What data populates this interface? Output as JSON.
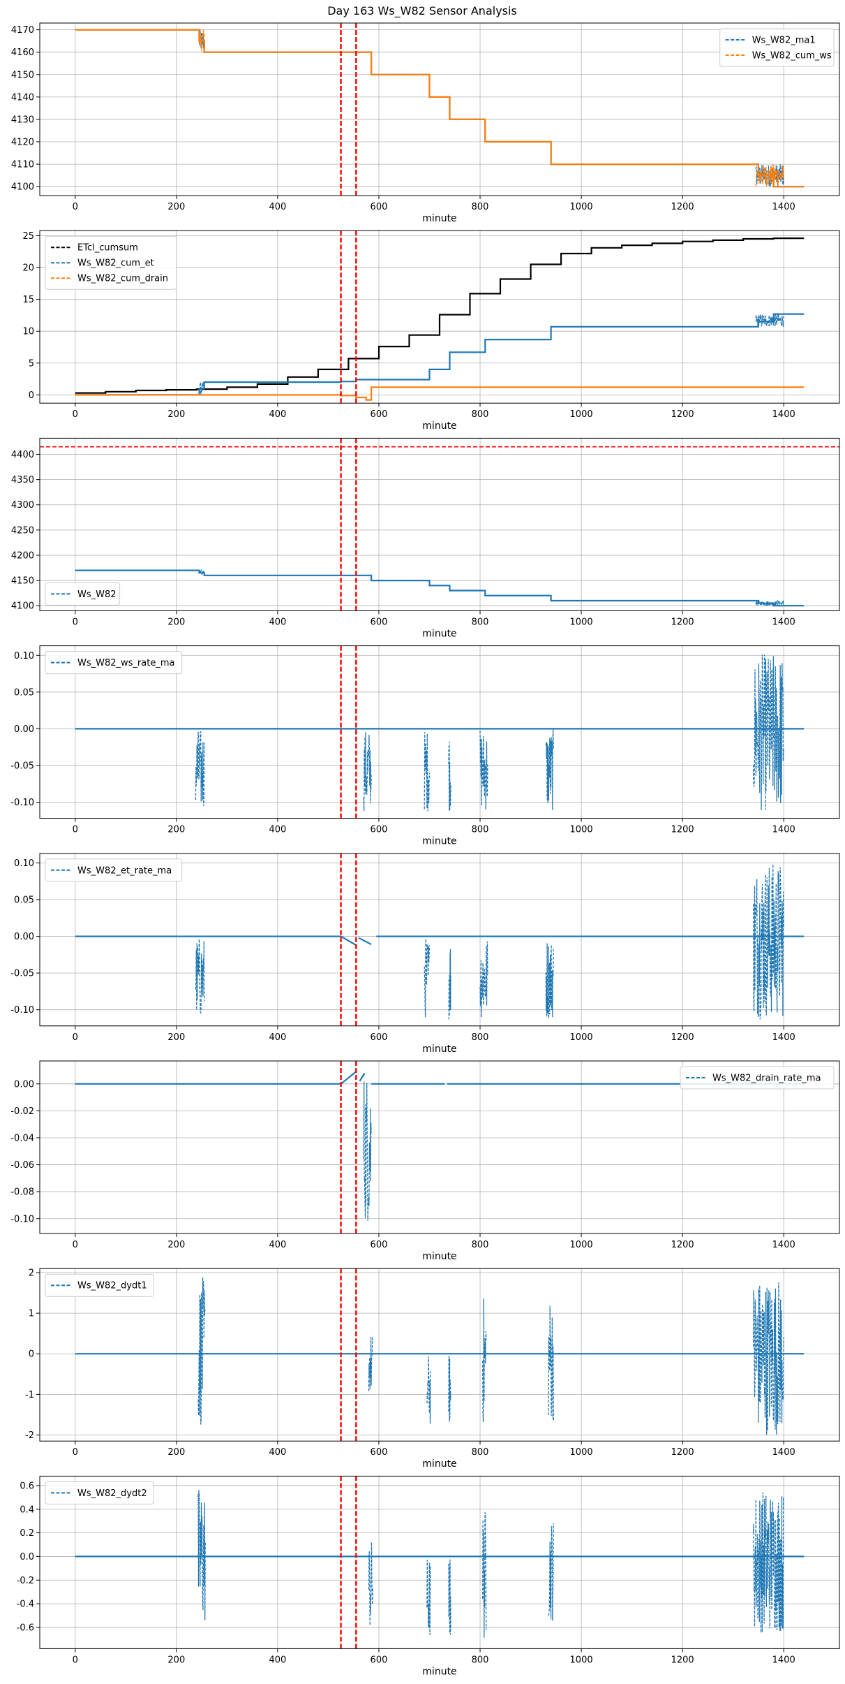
{
  "figure": {
    "title": "Day 163 Ws_W82 Sensor Analysis",
    "xlabel": "minute",
    "xticks": [
      0,
      200,
      400,
      600,
      800,
      1000,
      1200,
      1400
    ],
    "grid": true,
    "event_lines": {
      "color": "#ff0000",
      "x": [
        525,
        555
      ]
    }
  },
  "chart_data": [
    {
      "type": "line",
      "xlim": [
        -70,
        1510
      ],
      "ylim": [
        4096,
        4173
      ],
      "yticks": [
        4100,
        4110,
        4120,
        4130,
        4140,
        4150,
        4160,
        4170
      ],
      "ytick_labels": [
        "4100",
        "4110",
        "4120",
        "4130",
        "4140",
        "4150",
        "4160",
        "4170"
      ],
      "legend_loc": "upper-right",
      "series": [
        {
          "name": "Ws_W82_ma1",
          "color": "#1f77b4",
          "steps": [
            [
              0,
              4170
            ],
            [
              245,
              4165
            ],
            [
              255,
              4160
            ],
            [
              585,
              4150
            ],
            [
              700,
              4140
            ],
            [
              740,
              4130
            ],
            [
              810,
              4120
            ],
            [
              940,
              4110
            ],
            [
              1350,
              4105
            ],
            [
              1380,
              4100
            ]
          ],
          "noise": [
            [
              245,
              255,
              4160,
              4170
            ],
            [
              1345,
              1400,
              4100,
              4110
            ]
          ]
        },
        {
          "name": "Ws_W82_cum_ws",
          "color": "#ff7f0e",
          "steps": [
            [
              0,
              4170
            ],
            [
              245,
              4165
            ],
            [
              255,
              4160
            ],
            [
              585,
              4150
            ],
            [
              700,
              4140
            ],
            [
              740,
              4130
            ],
            [
              810,
              4120
            ],
            [
              940,
              4110
            ],
            [
              1350,
              4105
            ],
            [
              1380,
              4100
            ]
          ],
          "noise": [
            [
              245,
              255,
              4160,
              4170
            ],
            [
              1345,
              1400,
              4100,
              4110
            ]
          ]
        }
      ]
    },
    {
      "type": "line",
      "xlim": [
        -70,
        1510
      ],
      "ylim": [
        -1.3,
        25.8
      ],
      "yticks": [
        0,
        5,
        10,
        15,
        20,
        25
      ],
      "ytick_labels": [
        "0",
        "5",
        "10",
        "15",
        "20",
        "25"
      ],
      "legend_loc": "upper-left",
      "series": [
        {
          "name": "ETcl_cumsum",
          "color": "#000000",
          "steps": [
            [
              0,
              0.3
            ],
            [
              60,
              0.5
            ],
            [
              120,
              0.7
            ],
            [
              180,
              0.8
            ],
            [
              240,
              0.9
            ],
            [
              300,
              1.2
            ],
            [
              360,
              1.7
            ],
            [
              420,
              2.8
            ],
            [
              480,
              4.0
            ],
            [
              540,
              5.7
            ],
            [
              600,
              7.6
            ],
            [
              660,
              9.4
            ],
            [
              720,
              12.6
            ],
            [
              780,
              15.9
            ],
            [
              840,
              18.2
            ],
            [
              900,
              20.5
            ],
            [
              960,
              22.2
            ],
            [
              1020,
              23.1
            ],
            [
              1080,
              23.5
            ],
            [
              1140,
              23.8
            ],
            [
              1200,
              24.1
            ],
            [
              1260,
              24.3
            ],
            [
              1320,
              24.5
            ],
            [
              1380,
              24.6
            ]
          ],
          "noise": []
        },
        {
          "name": "Ws_W82_cum_et",
          "color": "#1f77b4",
          "steps": [
            [
              0,
              0
            ],
            [
              245,
              1.0
            ],
            [
              255,
              2.0
            ],
            [
              525,
              2.1
            ],
            [
              555,
              2.4
            ],
            [
              700,
              4.0
            ],
            [
              740,
              6.7
            ],
            [
              810,
              8.7
            ],
            [
              940,
              10.7
            ],
            [
              1350,
              11.5
            ],
            [
              1380,
              12.7
            ]
          ],
          "noise": [
            [
              245,
              255,
              0,
              2.0
            ],
            [
              1345,
              1400,
              10.7,
              12.7
            ]
          ]
        },
        {
          "name": "Ws_W82_cum_drain",
          "color": "#ff7f0e",
          "steps": [
            [
              0,
              0
            ],
            [
              525,
              -0.1
            ],
            [
              555,
              -0.4
            ],
            [
              575,
              -0.8
            ],
            [
              585,
              1.2
            ]
          ],
          "noise": []
        }
      ]
    },
    {
      "type": "line",
      "xlim": [
        -70,
        1510
      ],
      "ylim": [
        4090,
        4432
      ],
      "yticks": [
        4100,
        4150,
        4200,
        4250,
        4300,
        4350,
        4400
      ],
      "ytick_labels": [
        "4100",
        "4150",
        "4200",
        "4250",
        "4300",
        "4350",
        "4400"
      ],
      "legend_loc": "lower-left",
      "hline": {
        "y": 4415,
        "color": "#ff0000"
      },
      "series": [
        {
          "name": "Ws_W82",
          "color": "#1f77b4",
          "steps": [
            [
              0,
              4170
            ],
            [
              245,
              4165
            ],
            [
              255,
              4160
            ],
            [
              585,
              4150
            ],
            [
              700,
              4140
            ],
            [
              740,
              4130
            ],
            [
              810,
              4120
            ],
            [
              940,
              4110
            ],
            [
              1350,
              4105
            ],
            [
              1380,
              4100
            ]
          ],
          "noise": [
            [
              245,
              255,
              4160,
              4170
            ],
            [
              1345,
              1400,
              4100,
              4110
            ]
          ]
        }
      ]
    },
    {
      "type": "line",
      "xlim": [
        -70,
        1510
      ],
      "ylim": [
        -0.122,
        0.113
      ],
      "yticks": [
        -0.1,
        -0.05,
        0.0,
        0.05,
        0.1
      ],
      "ytick_labels": [
        "-0.10",
        "-0.05",
        "0.00",
        "0.05",
        "0.10"
      ],
      "legend_loc": "upper-left",
      "series": [
        {
          "name": "Ws_W82_ws_rate_ma",
          "color": "#1f77b4",
          "steps": [
            [
              0,
              0
            ]
          ],
          "noise": [
            [
              238,
              255,
              -0.113,
              0
            ],
            [
              570,
              585,
              -0.113,
              0
            ],
            [
              690,
              700,
              -0.113,
              0
            ],
            [
              738,
              742,
              -0.113,
              0
            ],
            [
              800,
              815,
              -0.113,
              0
            ],
            [
              930,
              945,
              -0.113,
              0
            ],
            [
              1340,
              1400,
              -0.113,
              0.103
            ]
          ]
        }
      ]
    },
    {
      "type": "line",
      "xlim": [
        -70,
        1510
      ],
      "ylim": [
        -0.122,
        0.113
      ],
      "yticks": [
        -0.1,
        -0.05,
        0.0,
        0.05,
        0.1
      ],
      "ytick_labels": [
        "-0.10",
        "-0.05",
        "0.00",
        "0.05",
        "0.10"
      ],
      "legend_loc": "upper-left",
      "series": [
        {
          "name": "Ws_W82_et_rate_ma",
          "color": "#1f77b4",
          "segments": [
            [
              [
                0,
                0
              ],
              [
                525,
                0
              ],
              [
                555,
                -0.012
              ]
            ],
            [
              [
                560,
                -0.002
              ],
              [
                585,
                -0.011
              ]
            ],
            [
              [
                595,
                0
              ],
              [
                1440,
                0
              ]
            ]
          ],
          "noise": [
            [
              238,
              255,
              -0.113,
              0
            ],
            [
              690,
              700,
              -0.113,
              0
            ],
            [
              738,
              742,
              -0.113,
              0
            ],
            [
              800,
              815,
              -0.113,
              0
            ],
            [
              930,
              945,
              -0.113,
              0
            ],
            [
              1340,
              1400,
              -0.113,
              0.103
            ]
          ]
        }
      ]
    },
    {
      "type": "line",
      "xlim": [
        -70,
        1510
      ],
      "ylim": [
        -0.111,
        0.017
      ],
      "yticks": [
        -0.1,
        -0.08,
        -0.06,
        -0.04,
        -0.02,
        0.0
      ],
      "ytick_labels": [
        "-0.10",
        "-0.08",
        "-0.06",
        "-0.04",
        "-0.02",
        "0.00"
      ],
      "legend_loc": "upper-right",
      "series": [
        {
          "name": "Ws_W82_drain_rate_ma",
          "color": "#1f77b4",
          "segments": [
            [
              [
                0,
                0
              ],
              [
                525,
                0
              ],
              [
                555,
                0.009
              ]
            ],
            [
              [
                562,
                0.002
              ],
              [
                572,
                0.008
              ]
            ],
            [
              [
                585,
                0
              ],
              [
                730,
                0
              ]
            ],
            [
              [
                735,
                0
              ],
              [
                1440,
                0
              ]
            ]
          ],
          "noise": [
            [
              570,
              585,
              -0.104,
              0.01
            ]
          ]
        }
      ]
    },
    {
      "type": "line",
      "xlim": [
        -70,
        1510
      ],
      "ylim": [
        -2.15,
        2.1
      ],
      "yticks": [
        -2,
        -1,
        0,
        1,
        2
      ],
      "ytick_labels": [
        "-2",
        "-1",
        "0",
        "1",
        "2"
      ],
      "legend_loc": "upper-left",
      "series": [
        {
          "name": "Ws_W82_dydt1",
          "color": "#1f77b4",
          "steps": [
            [
              0,
              0
            ]
          ],
          "noise": [
            [
              243,
              257,
              -1.8,
              1.9
            ],
            [
              580,
              588,
              -1.0,
              0.5
            ],
            [
              695,
              702,
              -1.8,
              0
            ],
            [
              738,
              742,
              -1.8,
              0
            ],
            [
              805,
              812,
              -1.8,
              1.45
            ],
            [
              935,
              945,
              -1.7,
              1.45
            ],
            [
              1340,
              1400,
              -2.0,
              1.9
            ]
          ]
        }
      ]
    },
    {
      "type": "line",
      "xlim": [
        -70,
        1510
      ],
      "ylim": [
        -0.78,
        0.68
      ],
      "yticks": [
        -0.6,
        -0.4,
        -0.2,
        0.0,
        0.2,
        0.4,
        0.6
      ],
      "ytick_labels": [
        "-0.6",
        "-0.4",
        "-0.2",
        "0.0",
        "0.2",
        "0.4",
        "0.6"
      ],
      "legend_loc": "upper-left",
      "series": [
        {
          "name": "Ws_W82_dydt2",
          "color": "#1f77b4",
          "steps": [
            [
              0,
              0
            ]
          ],
          "noise": [
            [
              243,
              257,
              -0.6,
              0.6
            ],
            [
              580,
              588,
              -0.65,
              0.15
            ],
            [
              695,
              702,
              -0.72,
              0
            ],
            [
              738,
              742,
              -0.72,
              0
            ],
            [
              805,
              812,
              -0.72,
              0.42
            ],
            [
              935,
              945,
              -0.55,
              0.33
            ],
            [
              1340,
              1400,
              -0.65,
              0.58
            ]
          ]
        }
      ]
    }
  ]
}
